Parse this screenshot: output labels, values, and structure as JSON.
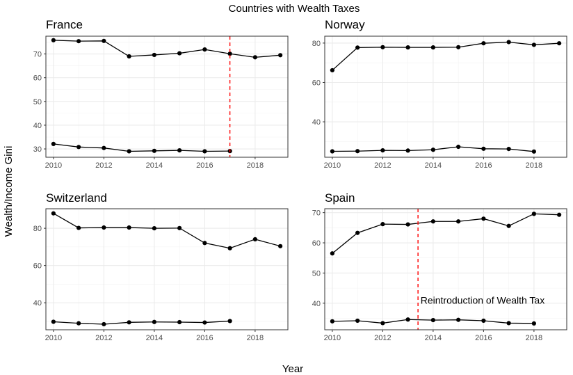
{
  "figure": {
    "title": "Countries with Wealth Taxes",
    "xlabel": "Year",
    "ylabel": "Wealth/Income Gini"
  },
  "chart_data": [
    {
      "type": "line",
      "title": "France",
      "xlim": [
        2009.7,
        2019.3
      ],
      "ylim": [
        26.5,
        77.5
      ],
      "x_ticks": [
        2010,
        2012,
        2014,
        2016,
        2018
      ],
      "y_ticks": [
        30,
        40,
        50,
        60,
        70
      ],
      "grid": true,
      "series": [
        {
          "x": [
            2010,
            2011,
            2012,
            2013,
            2014,
            2015,
            2016,
            2017,
            2018,
            2019
          ],
          "values": [
            75.8,
            75.4,
            75.5,
            69.0,
            69.6,
            70.3,
            71.9,
            70.1,
            68.6,
            69.5
          ]
        },
        {
          "x": [
            2010,
            2011,
            2012,
            2013,
            2014,
            2015,
            2016,
            2017
          ],
          "values": [
            32.1,
            30.8,
            30.4,
            29.0,
            29.2,
            29.4,
            29.0,
            29.1
          ]
        }
      ],
      "vline": {
        "x": 2017,
        "color": "#ff0000",
        "style": "dashed"
      }
    },
    {
      "type": "line",
      "title": "Norway",
      "xlim": [
        2009.7,
        2019.3
      ],
      "ylim": [
        22.0,
        83.5
      ],
      "x_ticks": [
        2010,
        2012,
        2014,
        2016,
        2018
      ],
      "y_ticks": [
        40,
        60,
        80
      ],
      "grid": true,
      "series": [
        {
          "x": [
            2010,
            2011,
            2012,
            2013,
            2014,
            2015,
            2016,
            2017,
            2018,
            2019
          ],
          "values": [
            66.2,
            77.7,
            77.9,
            77.8,
            77.8,
            77.9,
            79.9,
            80.5,
            79.1,
            79.9
          ]
        },
        {
          "x": [
            2010,
            2011,
            2012,
            2013,
            2014,
            2015,
            2016,
            2017,
            2018
          ],
          "values": [
            25.0,
            25.1,
            25.5,
            25.4,
            25.8,
            27.3,
            26.3,
            26.2,
            24.9
          ]
        }
      ]
    },
    {
      "type": "line",
      "title": "Switzerland",
      "xlim": [
        2009.7,
        2019.3
      ],
      "ylim": [
        25.5,
        90.5
      ],
      "x_ticks": [
        2010,
        2012,
        2014,
        2016,
        2018
      ],
      "y_ticks": [
        40,
        60,
        80
      ],
      "grid": true,
      "series": [
        {
          "x": [
            2010,
            2011,
            2012,
            2013,
            2014,
            2015,
            2016,
            2017,
            2018,
            2019
          ],
          "values": [
            88.0,
            80.2,
            80.4,
            80.4,
            80.0,
            80.1,
            72.1,
            69.3,
            74.1,
            70.4
          ]
        },
        {
          "x": [
            2010,
            2011,
            2012,
            2013,
            2014,
            2015,
            2016,
            2017
          ],
          "values": [
            29.8,
            29.0,
            28.5,
            29.5,
            29.7,
            29.6,
            29.4,
            30.2
          ]
        }
      ]
    },
    {
      "type": "line",
      "title": "Spain",
      "xlim": [
        2009.7,
        2019.3
      ],
      "ylim": [
        31.2,
        71.3
      ],
      "x_ticks": [
        2010,
        2012,
        2014,
        2016,
        2018
      ],
      "y_ticks": [
        40,
        50,
        60,
        70
      ],
      "grid": true,
      "series": [
        {
          "x": [
            2010,
            2011,
            2012,
            2013,
            2014,
            2015,
            2016,
            2017,
            2018,
            2019
          ],
          "values": [
            56.5,
            63.3,
            66.2,
            66.1,
            67.1,
            67.1,
            68.0,
            65.6,
            69.6,
            69.3
          ]
        },
        {
          "x": [
            2010,
            2011,
            2012,
            2013,
            2014,
            2015,
            2016,
            2017,
            2018
          ],
          "values": [
            34.0,
            34.2,
            33.4,
            34.6,
            34.4,
            34.5,
            34.2,
            33.4,
            33.3
          ]
        }
      ],
      "vline": {
        "x": 2013.4,
        "color": "#ff0000",
        "style": "dashed"
      },
      "annotation": {
        "text": "Reintroduction of Wealth Tax",
        "x": 2013.5,
        "y": 39.8
      }
    }
  ]
}
